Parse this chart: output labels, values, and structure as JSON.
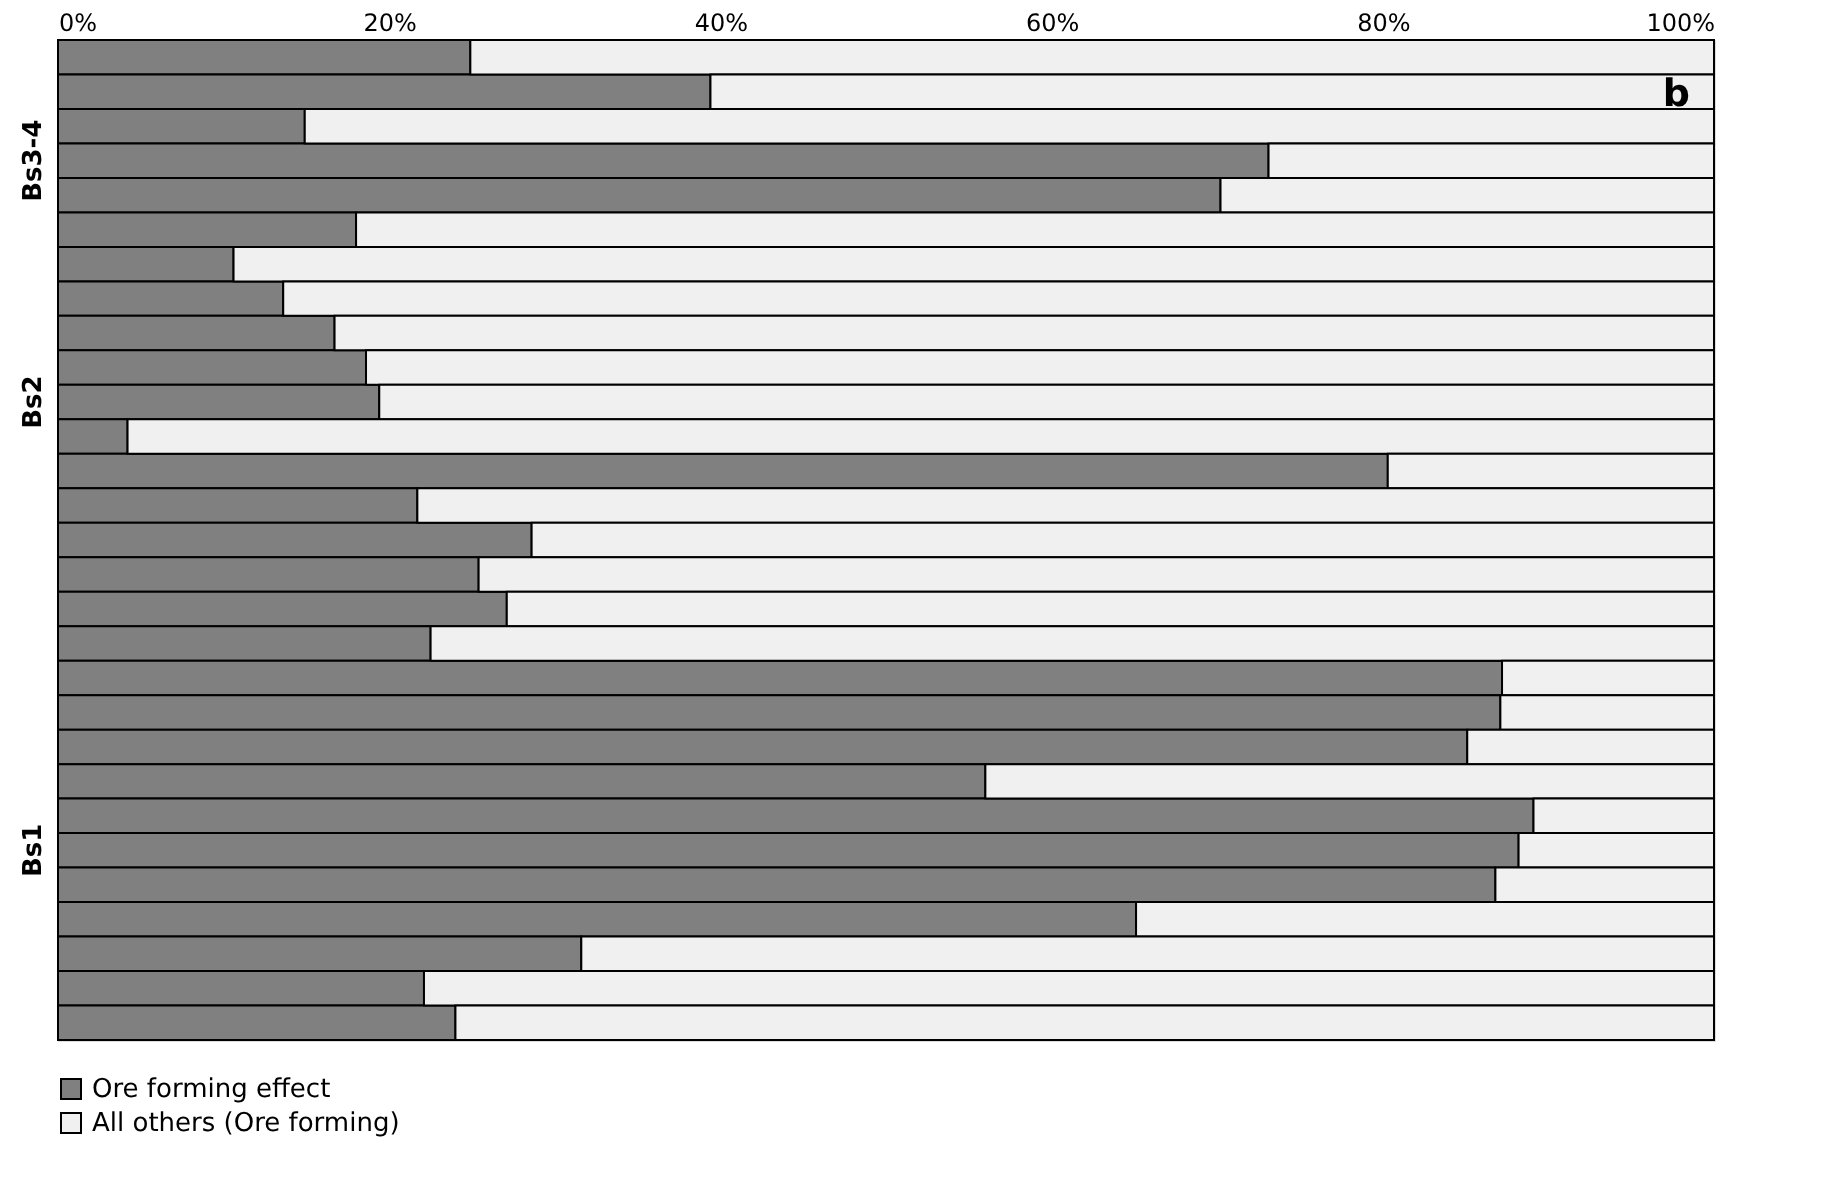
{
  "chart_data": {
    "type": "bar",
    "orientation": "horizontal",
    "stacked": true,
    "categories": [
      null,
      null,
      null,
      "Bs3-4",
      null,
      null,
      null,
      null,
      null,
      null,
      "Bs2",
      null,
      null,
      null,
      null,
      null,
      null,
      null,
      null,
      null,
      null,
      null,
      null,
      "Bs1",
      null,
      null,
      null,
      null,
      null
    ],
    "series": [
      {
        "name": "Ore forming effect",
        "color": "#808080",
        "values": [
          24.9,
          39.4,
          14.9,
          73.1,
          70.2,
          18.0,
          10.6,
          13.6,
          16.7,
          18.6,
          19.4,
          4.2,
          80.3,
          21.7,
          28.6,
          25.4,
          27.1,
          22.5,
          87.2,
          87.1,
          85.1,
          56.0,
          89.1,
          88.2,
          86.8,
          65.1,
          31.6,
          22.1,
          24.0
        ]
      },
      {
        "name": "All others (Ore forming)",
        "color": "#f0f0f0",
        "values": [
          75.1,
          60.6,
          85.1,
          26.9,
          29.8,
          82.0,
          89.4,
          86.4,
          83.3,
          81.4,
          80.6,
          95.8,
          19.7,
          78.3,
          71.4,
          74.6,
          72.9,
          77.5,
          12.8,
          12.9,
          14.9,
          44.0,
          10.9,
          11.8,
          13.2,
          34.9,
          68.4,
          77.9,
          76.0
        ]
      }
    ],
    "xlim": [
      0,
      100
    ],
    "xticks": [
      {
        "value": 0,
        "label": "0%"
      },
      {
        "value": 20,
        "label": "20%"
      },
      {
        "value": 40,
        "label": "40%"
      },
      {
        "value": 60,
        "label": "60%"
      },
      {
        "value": 80,
        "label": "80%"
      },
      {
        "value": 100,
        "label": "100%"
      }
    ],
    "annotations": [
      "b"
    ],
    "legend": "bottom"
  }
}
